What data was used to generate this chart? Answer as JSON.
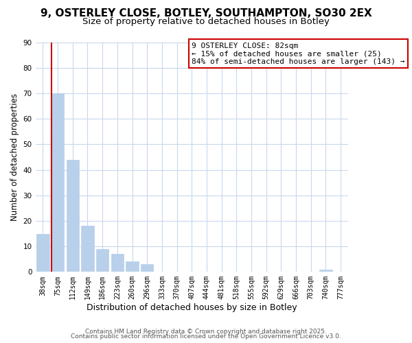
{
  "title": "9, OSTERLEY CLOSE, BOTLEY, SOUTHAMPTON, SO30 2EX",
  "subtitle": "Size of property relative to detached houses in Botley",
  "xlabel": "Distribution of detached houses by size in Botley",
  "ylabel": "Number of detached properties",
  "bar_labels": [
    "38sqm",
    "75sqm",
    "112sqm",
    "149sqm",
    "186sqm",
    "223sqm",
    "260sqm",
    "296sqm",
    "333sqm",
    "370sqm",
    "407sqm",
    "444sqm",
    "481sqm",
    "518sqm",
    "555sqm",
    "592sqm",
    "629sqm",
    "666sqm",
    "703sqm",
    "740sqm",
    "777sqm"
  ],
  "bar_values": [
    15,
    70,
    44,
    18,
    9,
    7,
    4,
    3,
    0,
    0,
    0,
    0,
    0,
    0,
    0,
    0,
    0,
    0,
    0,
    1,
    0
  ],
  "bar_color": "#b8d0ea",
  "bar_edge_color": "#b8d0ea",
  "vline_color": "#cc0000",
  "annotation_line1": "9 OSTERLEY CLOSE: 82sqm",
  "annotation_line2": "← 15% of detached houses are smaller (25)",
  "annotation_line3": "84% of semi-detached houses are larger (143) →",
  "annotation_box_color": "#ffffff",
  "annotation_box_edge": "#cc0000",
  "ylim": [
    0,
    90
  ],
  "footer1": "Contains HM Land Registry data © Crown copyright and database right 2025.",
  "footer2": "Contains public sector information licensed under the Open Government Licence v3.0.",
  "background_color": "#ffffff",
  "grid_color": "#c8d8ec",
  "title_fontsize": 11,
  "subtitle_fontsize": 9.5,
  "ylabel_fontsize": 8.5,
  "xlabel_fontsize": 9,
  "tick_fontsize": 7,
  "footer_fontsize": 6.5
}
